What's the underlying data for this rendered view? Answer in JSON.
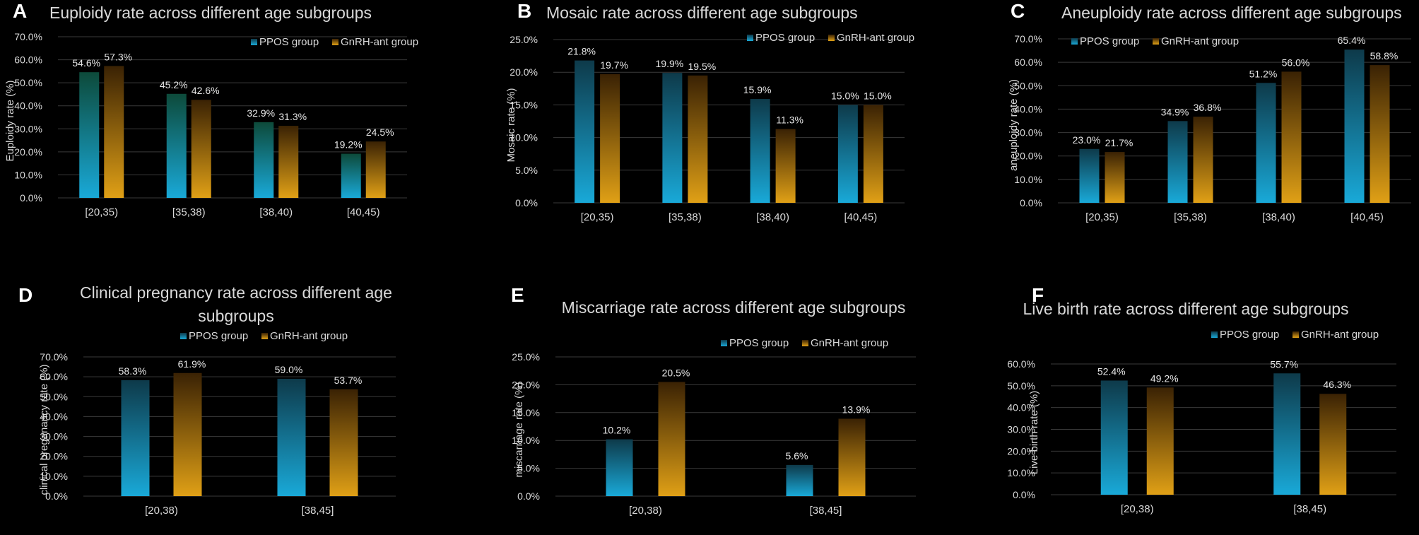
{
  "colors": {
    "background": "#000000",
    "ppos_top": "#0e3a4a",
    "ppos_bottom": "#19a9d8",
    "gnrh_top": "#3a2204",
    "gnrh_bottom": "#e0a016",
    "text": "#d9d9d9",
    "grid": "#3a3a3a"
  },
  "chart_data": [
    {
      "letter": "A",
      "type": "bar",
      "title_lines": [
        "Euploidy rate across different age subgroups"
      ],
      "ylabel": "Euploidy rate (%)",
      "xlabel": "",
      "categories": [
        "[20,35)",
        "[35,38)",
        "[38,40)",
        "[40,45)"
      ],
      "series": [
        {
          "name": "PPOS group",
          "values": [
            54.6,
            45.2,
            32.9,
            19.2
          ],
          "labels": [
            "54.6%",
            "45.2%",
            "32.9%",
            "19.2%"
          ]
        },
        {
          "name": "GnRH-ant group",
          "values": [
            57.3,
            42.6,
            31.3,
            24.5
          ],
          "labels": [
            "57.3%",
            "42.6%",
            "31.3%",
            "24.5%"
          ]
        }
      ],
      "ylim": [
        0,
        70
      ],
      "yticks": [
        "0.0%",
        "10.0%",
        "20.0%",
        "30.0%",
        "40.0%",
        "50.0%",
        "60.0%",
        "70.0%"
      ],
      "legend": "top-right",
      "grid": true,
      "first_bar_top_highlight": "#0d4a3a"
    },
    {
      "letter": "B",
      "type": "bar",
      "title_lines": [
        "Mosaic rate across different age subgroups"
      ],
      "ylabel": "Mosaic rate (%)",
      "xlabel": "",
      "categories": [
        "[20,35)",
        "[35,38)",
        "[38,40)",
        "[40,45)"
      ],
      "series": [
        {
          "name": "PPOS group",
          "values": [
            21.8,
            19.9,
            15.9,
            15.0
          ],
          "labels": [
            "21.8%",
            "19.9%",
            "15.9%",
            "15.0%"
          ]
        },
        {
          "name": "GnRH-ant group",
          "values": [
            19.7,
            19.5,
            11.3,
            15.0
          ],
          "labels": [
            "19.7%",
            "19.5%",
            "11.3%",
            "15.0%"
          ]
        }
      ],
      "ylim": [
        0,
        25
      ],
      "yticks": [
        "0.0%",
        "5.0%",
        "10.0%",
        "15.0%",
        "20.0%",
        "25.0%"
      ],
      "legend": "top-right",
      "grid": true
    },
    {
      "letter": "C",
      "type": "bar",
      "title_lines": [
        "Aneuploidy rate across different age subgroups"
      ],
      "ylabel": "aneuploidy rate (%)",
      "xlabel": "",
      "categories": [
        "[20,35)",
        "[35,38)",
        "[38,40)",
        "[40,45)"
      ],
      "series": [
        {
          "name": "PPOS group",
          "values": [
            23.0,
            34.9,
            51.2,
            65.4
          ],
          "labels": [
            "23.0%",
            "34.9%",
            "51.2%",
            "65.4%"
          ]
        },
        {
          "name": "GnRH-ant group",
          "values": [
            21.7,
            36.8,
            56.0,
            58.8
          ],
          "labels": [
            "21.7%",
            "36.8%",
            "56.0%",
            "58.8%"
          ]
        }
      ],
      "ylim": [
        0,
        70
      ],
      "yticks": [
        "0.0%",
        "10.0%",
        "20.0%",
        "30.0%",
        "40.0%",
        "50.0%",
        "60.0%",
        "70.0%"
      ],
      "legend": "top-left",
      "grid": true
    },
    {
      "letter": "D",
      "type": "bar",
      "title_lines": [
        "Clinical pregnancy rate across different age",
        "subgroups"
      ],
      "ylabel": "clinical preganancy rate (%)",
      "xlabel": "",
      "categories": [
        "[20,38)",
        "[38,45]"
      ],
      "series": [
        {
          "name": "PPOS group",
          "values": [
            58.3,
            59.0
          ],
          "labels": [
            "58.3%",
            "59.0%"
          ]
        },
        {
          "name": "GnRH-ant group",
          "values": [
            61.9,
            53.7
          ],
          "labels": [
            "61.9%",
            "53.7%"
          ]
        }
      ],
      "ylim": [
        0,
        70
      ],
      "yticks": [
        "0.0%",
        "10.0%",
        "20.0%",
        "30.0%",
        "40.0%",
        "50.0%",
        "60.0%",
        "70.0%"
      ],
      "legend": "top-center",
      "grid": true
    },
    {
      "letter": "E",
      "type": "bar",
      "title_lines": [
        "Miscarriage rate across different age subgroups"
      ],
      "ylabel": "miscarriage rate (%)",
      "xlabel": "",
      "categories": [
        "[20,38)",
        "[38,45]"
      ],
      "series": [
        {
          "name": "PPOS group",
          "values": [
            10.2,
            5.6
          ],
          "labels": [
            "10.2%",
            "5.6%"
          ]
        },
        {
          "name": "GnRH-ant group",
          "values": [
            20.5,
            13.9
          ],
          "labels": [
            "20.5%",
            "13.9%"
          ]
        }
      ],
      "ylim": [
        0,
        25
      ],
      "yticks": [
        "0.0%",
        "5.0%",
        "10.0%",
        "15.0%",
        "20.0%",
        "25.0%"
      ],
      "legend": "top-right",
      "grid": true
    },
    {
      "letter": "F",
      "type": "bar",
      "title_lines": [
        "Live birth rate across different age subgroups"
      ],
      "ylabel": "Live birth rate (%)",
      "xlabel": "",
      "categories": [
        "[20,38)",
        "[38,45)"
      ],
      "series": [
        {
          "name": "PPOS group",
          "values": [
            52.4,
            55.7
          ],
          "labels": [
            "52.4%",
            "55.7%"
          ]
        },
        {
          "name": "GnRH-ant group",
          "values": [
            49.2,
            46.3
          ],
          "labels": [
            "49.2%",
            "46.3%"
          ]
        }
      ],
      "ylim": [
        0,
        60
      ],
      "yticks": [
        "0.0%",
        "10.0%",
        "20.0%",
        "30.0%",
        "40.0%",
        "50.0%",
        "60.0%"
      ],
      "legend": "top-center",
      "grid": true
    }
  ]
}
